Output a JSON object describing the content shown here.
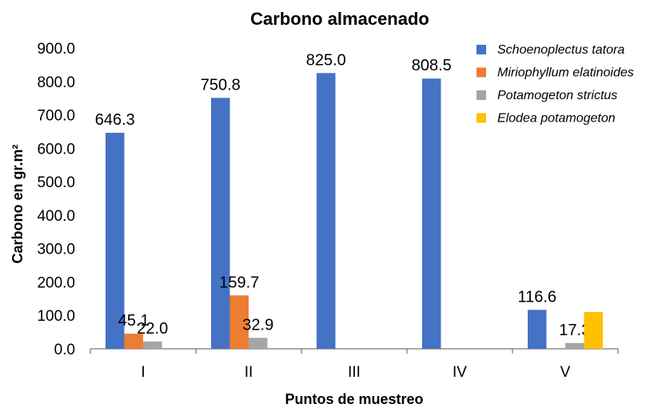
{
  "chart_data": {
    "type": "bar",
    "title": "Carbono almacenado",
    "xlabel": "Puntos de muestreo",
    "ylabel": "Carbono en gr.m²",
    "ylim": [
      0,
      900
    ],
    "yticks": [
      "0.0",
      "100.0",
      "200.0",
      "300.0",
      "400.0",
      "500.0",
      "600.0",
      "700.0",
      "800.0",
      "900.0"
    ],
    "categories": [
      "I",
      "II",
      "III",
      "IV",
      "V"
    ],
    "series": [
      {
        "name": "Schoenoplectus tatora",
        "color": "#4472C4",
        "values": [
          646.3,
          750.8,
          825.0,
          808.5,
          116.6
        ],
        "labels": [
          "646.3",
          "750.8",
          "825.0",
          "808.5",
          "116.6"
        ]
      },
      {
        "name": "Miriophyllum elatinoides",
        "color": "#ED7D31",
        "values": [
          45.1,
          159.7,
          null,
          null,
          null
        ],
        "labels": [
          "45.1",
          "159.7",
          null,
          null,
          null
        ]
      },
      {
        "name": "Potamogeton strictus",
        "color": "#A5A5A5",
        "values": [
          22.0,
          32.9,
          null,
          null,
          17.3
        ],
        "labels": [
          "22.0",
          "32.9",
          null,
          null,
          "17.3"
        ]
      },
      {
        "name": "Elodea potamogeton",
        "color": "#FFC000",
        "values": [
          null,
          null,
          null,
          null,
          110.0
        ],
        "labels": [
          null,
          null,
          null,
          null,
          null
        ]
      }
    ],
    "grid": false,
    "legend": "right"
  }
}
